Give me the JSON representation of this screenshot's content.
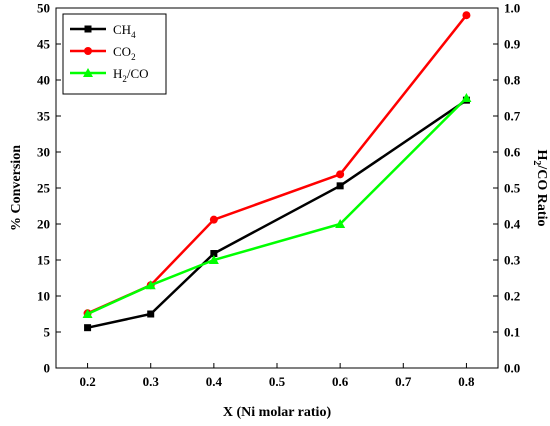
{
  "chart_data": {
    "type": "line",
    "xlabel": "X (Ni molar ratio)",
    "ylabel_left": "% Conversion",
    "ylabel_right": {
      "main": "H",
      "sub": "2",
      "rest": "/CO Ratio"
    },
    "xlim": [
      0.15,
      0.85
    ],
    "ylim_left": [
      0,
      50
    ],
    "ylim_right": [
      0,
      1.0
    ],
    "x_ticks": [
      "0.2",
      "0.3",
      "0.4",
      "0.5",
      "0.6",
      "0.7",
      "0.8"
    ],
    "y_left_ticks": [
      "0",
      "5",
      "10",
      "15",
      "20",
      "25",
      "30",
      "35",
      "40",
      "45",
      "50"
    ],
    "y_right_ticks": [
      "0.0",
      "0.1",
      "0.2",
      "0.3",
      "0.4",
      "0.5",
      "0.6",
      "0.7",
      "0.8",
      "0.9",
      "1.0"
    ],
    "grid": false,
    "legend_position": "top-left",
    "series": [
      {
        "name": {
          "main": "CH",
          "sub": "4",
          "rest": ""
        },
        "axis": "left",
        "marker": "square",
        "color": "#000000",
        "x": [
          0.2,
          0.3,
          0.4,
          0.6,
          0.8
        ],
        "values": [
          5.6,
          7.5,
          15.9,
          25.3,
          37.2
        ]
      },
      {
        "name": {
          "main": "CO",
          "sub": "2",
          "rest": ""
        },
        "axis": "left",
        "marker": "circle",
        "color": "#ff0000",
        "x": [
          0.2,
          0.3,
          0.4,
          0.6,
          0.8
        ],
        "values": [
          7.6,
          11.5,
          20.6,
          26.9,
          49.0
        ]
      },
      {
        "name": {
          "main": "H",
          "sub": "2",
          "rest": "/CO"
        },
        "axis": "right",
        "marker": "triangle",
        "color": "#00ff00",
        "x": [
          0.2,
          0.3,
          0.4,
          0.6,
          0.8
        ],
        "values": [
          0.15,
          0.23,
          0.3,
          0.4,
          0.75
        ]
      }
    ]
  }
}
